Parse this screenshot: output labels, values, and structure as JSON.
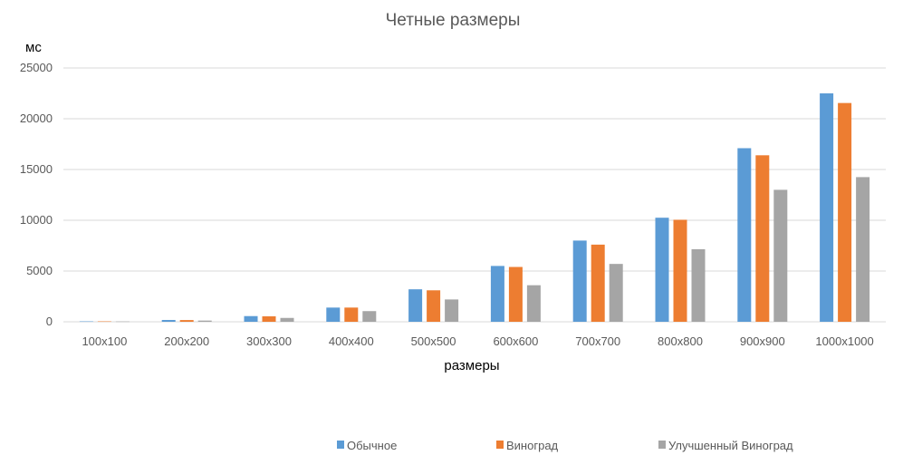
{
  "chart_data": {
    "type": "bar",
    "title": "Четные размеры",
    "xlabel": "размеры",
    "ylabel": "мс",
    "ylim": [
      0,
      25000
    ],
    "yticks": [
      0,
      5000,
      10000,
      15000,
      20000,
      25000
    ],
    "grid": true,
    "legend_position": "bottom",
    "categories": [
      "100x100",
      "200x200",
      "300x300",
      "400x400",
      "500x500",
      "600x600",
      "700x700",
      "800x800",
      "900x900",
      "1000x1000"
    ],
    "series": [
      {
        "name": "Обычное",
        "color": "#5B9BD5",
        "values": [
          40,
          180,
          560,
          1400,
          3200,
          5500,
          8000,
          10250,
          17100,
          22500
        ]
      },
      {
        "name": "Виноград",
        "color": "#ED7D31",
        "values": [
          40,
          170,
          540,
          1400,
          3100,
          5400,
          7600,
          10050,
          16400,
          21550
        ]
      },
      {
        "name": "Улучшенный Виноград",
        "color": "#A5A5A5",
        "values": [
          30,
          120,
          380,
          1050,
          2200,
          3600,
          5700,
          7150,
          13000,
          14250
        ]
      }
    ]
  }
}
